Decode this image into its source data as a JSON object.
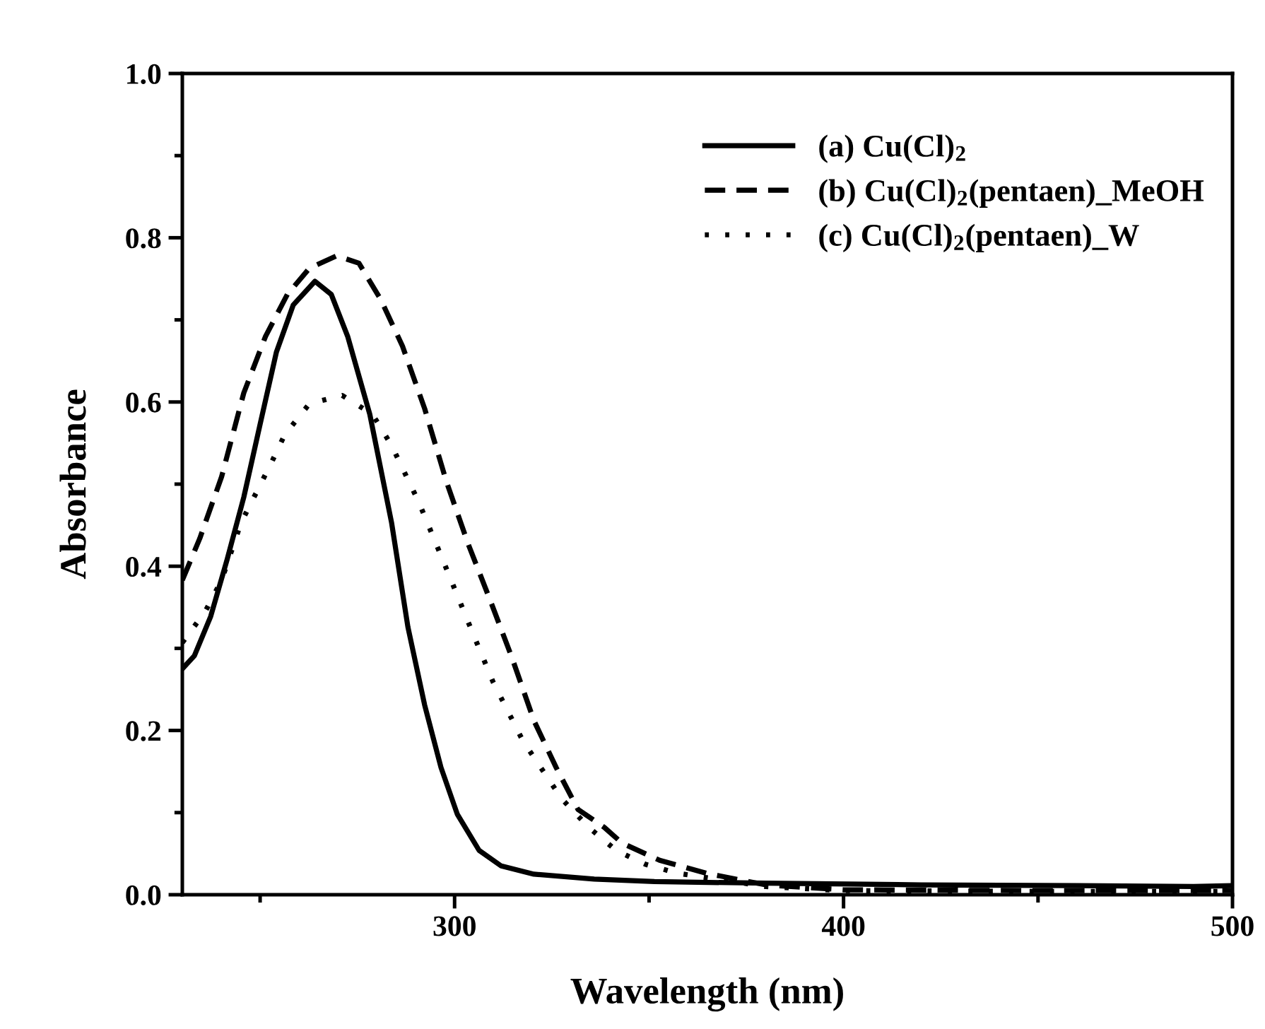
{
  "chart_data": {
    "type": "line",
    "xlabel": "Wavelength (nm)",
    "ylabel": "Absorbance",
    "xlim": [
      230,
      500
    ],
    "xticks": [
      300,
      400,
      500
    ],
    "ylim": [
      0,
      1
    ],
    "yticks": [
      {
        "value": 0,
        "label": "0.0"
      },
      {
        "value": 0.2,
        "label": "0.2"
      },
      {
        "value": 0.4,
        "label": "0.4"
      },
      {
        "value": 0.6,
        "label": "0.6"
      },
      {
        "value": 0.8,
        "label": "0.8"
      },
      {
        "value": 1,
        "label": "1.0"
      }
    ],
    "grid": false,
    "legend": "top right",
    "series": [
      {
        "name": "(a) Cu(Cl)$_{2}$",
        "color": "#000000",
        "line_style": "solid",
        "x": [
          230,
          233.1,
          237.3,
          241.5,
          245.8,
          250,
          254.2,
          258.5,
          264.1,
          268.3,
          272.5,
          278.2,
          283.8,
          288,
          292.3,
          296.5,
          300.7,
          306.3,
          312,
          320.4,
          335.9,
          351.4,
          380,
          420,
          460,
          490,
          500
        ],
        "values": [
          0.275,
          0.291,
          0.339,
          0.408,
          0.484,
          0.573,
          0.661,
          0.718,
          0.747,
          0.731,
          0.68,
          0.585,
          0.453,
          0.326,
          0.231,
          0.155,
          0.098,
          0.054,
          0.035,
          0.025,
          0.019,
          0.016,
          0.014,
          0.012,
          0.011,
          0.01,
          0.011
        ]
      },
      {
        "name": "(b) Cu(Cl)$_{2}$(pentaen)_MeOH",
        "color": "#000000",
        "line_style": "dashed",
        "x": [
          230,
          234.5,
          240.1,
          245.8,
          251.4,
          257,
          262.7,
          269.7,
          275.4,
          281,
          286.6,
          292.3,
          297.9,
          303.5,
          309.2,
          314.8,
          320.4,
          326.1,
          331.7,
          338.5,
          343,
          352.7,
          364.8,
          380,
          400,
          450,
          500
        ],
        "values": [
          0.383,
          0.434,
          0.509,
          0.611,
          0.68,
          0.731,
          0.763,
          0.778,
          0.769,
          0.725,
          0.668,
          0.592,
          0.503,
          0.427,
          0.358,
          0.288,
          0.212,
          0.155,
          0.104,
          0.082,
          0.063,
          0.042,
          0.026,
          0.012,
          0.006,
          0.005,
          0.005
        ]
      },
      {
        "name": "(c) Cu(Cl)$_{2}$(pentaen)_W",
        "color": "#000000",
        "line_style": "dotted",
        "x": [
          230,
          235.9,
          240.1,
          245.1,
          252.8,
          256.3,
          262.7,
          271.1,
          278.9,
          283.8,
          290.8,
          297.2,
          303.5,
          309.9,
          317.6,
          327.5,
          334.5,
          341.5,
          349.1,
          357.5,
          380,
          400,
          450,
          500
        ],
        "values": [
          0.307,
          0.345,
          0.383,
          0.453,
          0.525,
          0.56,
          0.598,
          0.608,
          0.585,
          0.547,
          0.478,
          0.405,
          0.332,
          0.259,
          0.187,
          0.117,
          0.082,
          0.054,
          0.037,
          0.026,
          0.01,
          0.005,
          0.004,
          0.004
        ]
      }
    ]
  }
}
